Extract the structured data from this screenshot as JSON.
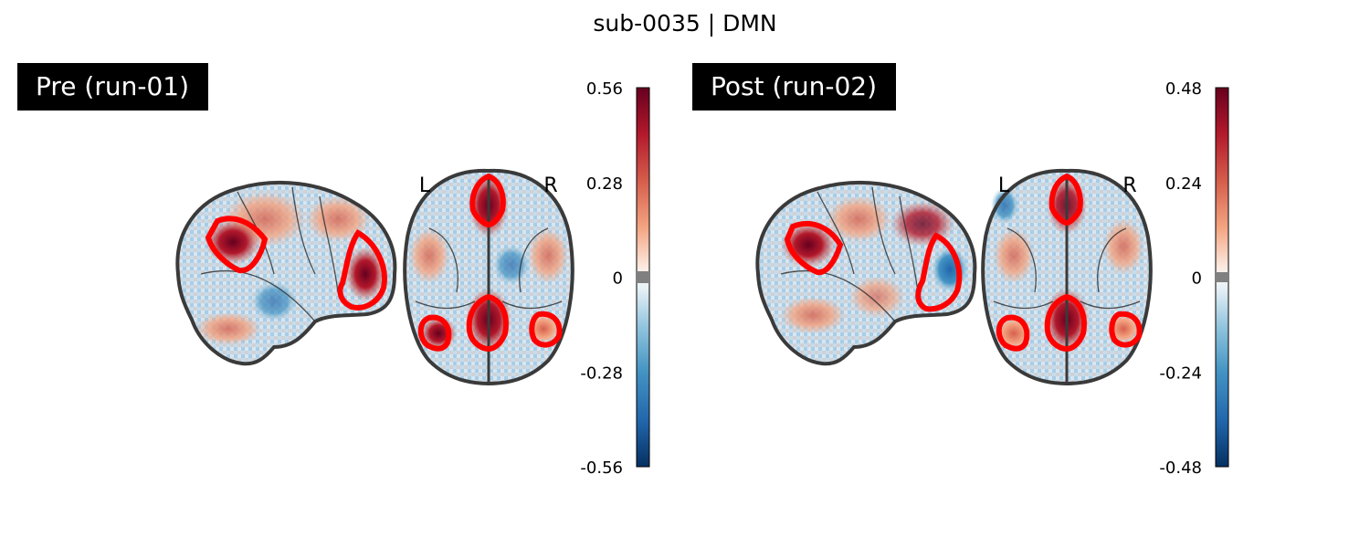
{
  "figure": {
    "title": "sub-0035 | DMN"
  },
  "panels": [
    {
      "label": "Pre (run-01)",
      "left_marker": "L",
      "right_marker": "R",
      "colorbar": {
        "colormap": "RdBu_r",
        "vmin": -0.56,
        "vmax": 0.56,
        "ticks": [
          "0.56",
          "0.28",
          "0",
          "-0.28",
          "-0.56"
        ]
      }
    },
    {
      "label": "Post (run-02)",
      "left_marker": "L",
      "right_marker": "R",
      "colorbar": {
        "colormap": "RdBu_r",
        "vmin": -0.48,
        "vmax": 0.48,
        "ticks": [
          "0.48",
          "0.24",
          "0",
          "-0.24",
          "-0.48"
        ]
      }
    }
  ],
  "colors": {
    "outline": "#3a3a3a",
    "contour": "#ff0000",
    "label_bg": "#000000",
    "cmap_neg_dark": "#053061",
    "cmap_neg_mid": "#4393c3",
    "cmap_neg_light": "#d1e5f0",
    "cmap_center": "#f7f7f7",
    "cmap_pos_light": "#fddbc7",
    "cmap_pos_mid": "#d6604d",
    "cmap_pos_dark": "#67001f"
  }
}
